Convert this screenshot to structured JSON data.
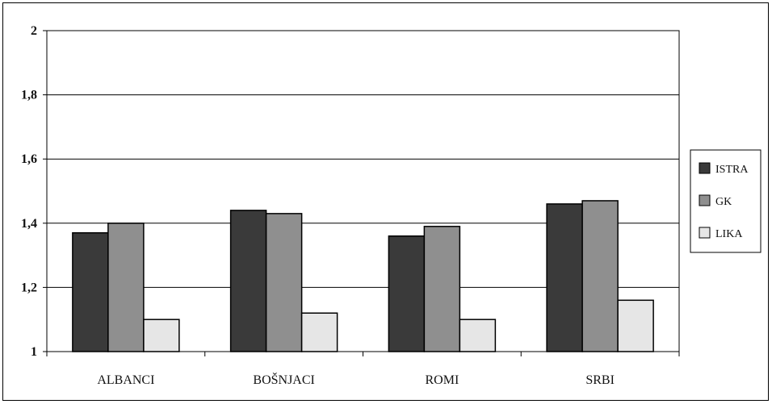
{
  "chart_data": {
    "type": "bar",
    "categories": [
      "ALBANCI",
      "BOŠNJACI",
      "ROMI",
      "SRBI"
    ],
    "series": [
      {
        "name": "ISTRA",
        "values": [
          1.37,
          1.44,
          1.36,
          1.46
        ],
        "color": "#3a3a3a"
      },
      {
        "name": "GK",
        "values": [
          1.4,
          1.43,
          1.39,
          1.47
        ],
        "color": "#8f8f8f"
      },
      {
        "name": "LIKA",
        "values": [
          1.1,
          1.12,
          1.1,
          1.16
        ],
        "color": "#e6e6e6"
      }
    ],
    "ylim": [
      1,
      2
    ],
    "yticks": [
      "1",
      "1,2",
      "1,4",
      "1,6",
      "1,8",
      "2"
    ],
    "grid": true,
    "legend_position": "right"
  }
}
